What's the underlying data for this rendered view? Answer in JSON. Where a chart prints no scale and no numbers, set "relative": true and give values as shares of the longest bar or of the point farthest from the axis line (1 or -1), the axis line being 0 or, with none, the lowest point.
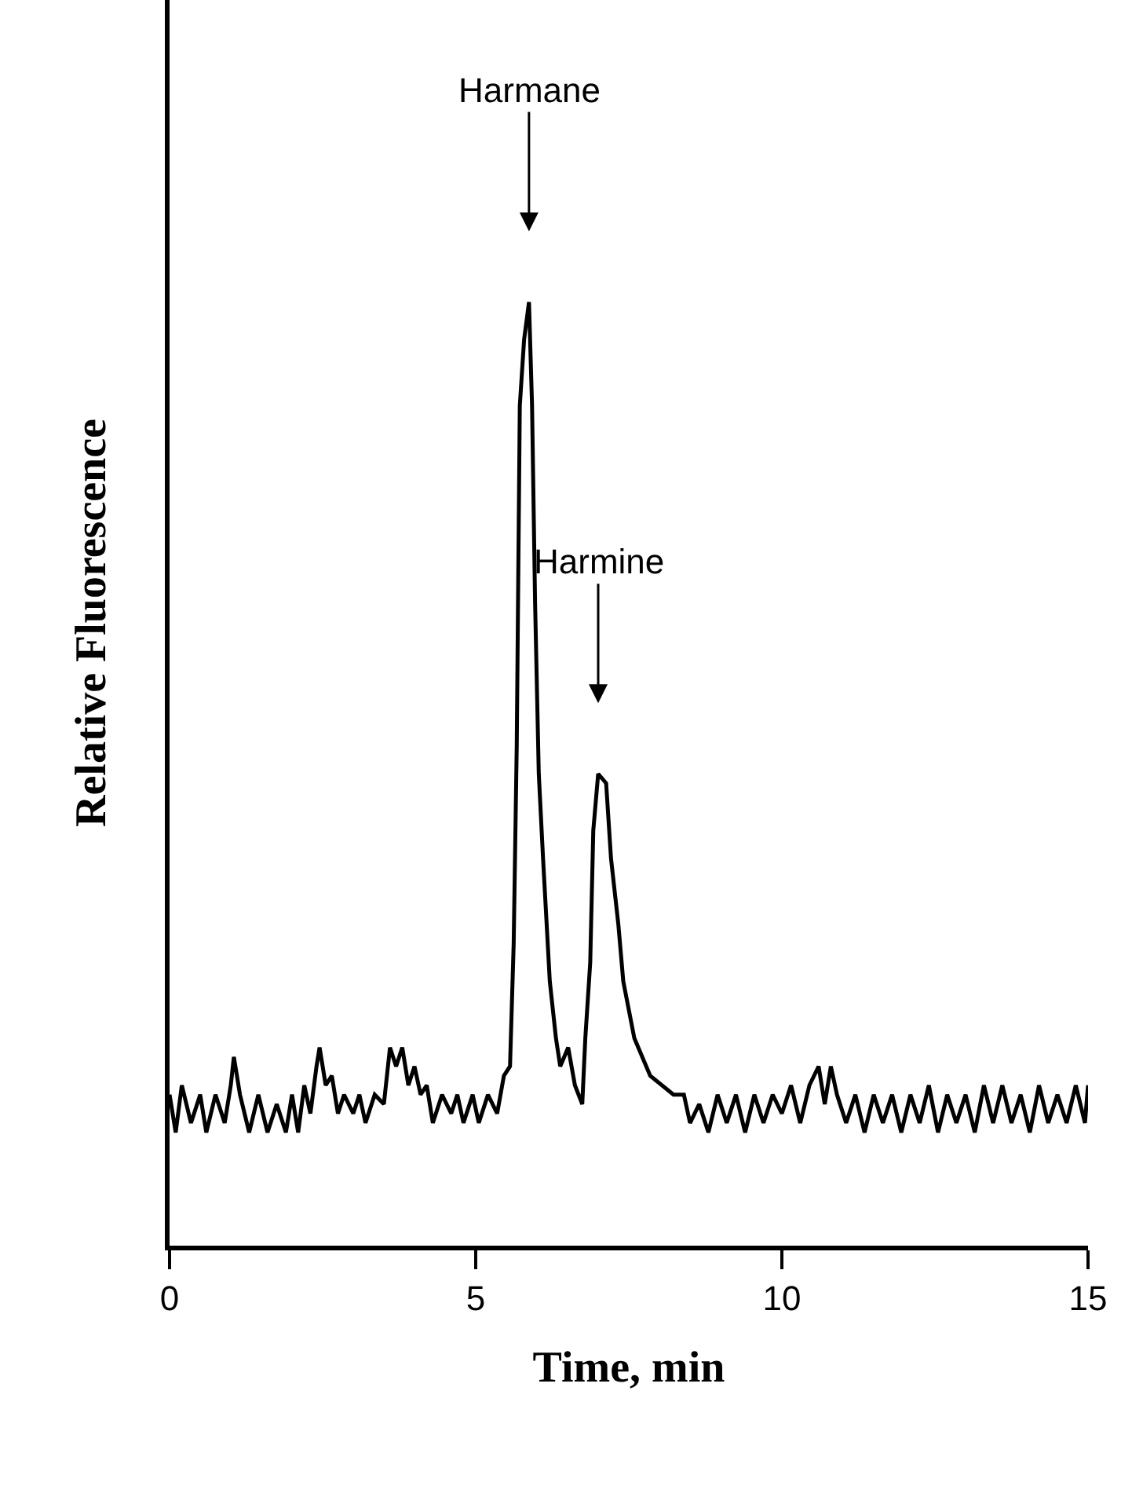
{
  "chart_data": {
    "type": "line",
    "xlabel": "Time, min",
    "ylabel": "Relative Fluorescence",
    "relative": true,
    "xlim": [
      0,
      15
    ],
    "xticks": [
      0,
      5,
      10,
      15
    ],
    "marker": "none",
    "line_style": "solid",
    "tick_labels": "x",
    "annotations": [
      {
        "text": "Harmane",
        "x": 5.87,
        "y": 1.0
      },
      {
        "text": "Harmine",
        "x": 7.0,
        "y": 0.5
      }
    ],
    "series": [
      {
        "color": "#000000",
        "x": [
          0.0,
          0.1,
          0.2,
          0.35,
          0.5,
          0.6,
          0.75,
          0.9,
          1.0,
          1.05,
          1.15,
          1.3,
          1.45,
          1.6,
          1.75,
          1.9,
          2.0,
          2.1,
          2.2,
          2.3,
          2.4,
          2.45,
          2.55,
          2.65,
          2.75,
          2.85,
          3.0,
          3.1,
          3.2,
          3.35,
          3.5,
          3.6,
          3.7,
          3.8,
          3.9,
          4.0,
          4.1,
          4.2,
          4.3,
          4.45,
          4.6,
          4.7,
          4.8,
          4.95,
          5.05,
          5.2,
          5.35,
          5.46,
          5.56,
          5.62,
          5.67,
          5.72,
          5.79,
          5.87,
          5.92,
          5.97,
          6.03,
          6.1,
          6.21,
          6.31,
          6.38,
          6.51,
          6.62,
          6.74,
          6.79,
          6.87,
          6.92,
          7.0,
          7.13,
          7.21,
          7.33,
          7.41,
          7.59,
          7.85,
          8.23,
          8.4,
          8.5,
          8.65,
          8.8,
          8.95,
          9.1,
          9.25,
          9.4,
          9.55,
          9.7,
          9.85,
          10.0,
          10.15,
          10.3,
          10.45,
          10.6,
          10.7,
          10.8,
          10.9,
          11.05,
          11.2,
          11.35,
          11.5,
          11.65,
          11.8,
          11.95,
          12.1,
          12.25,
          12.4,
          12.55,
          12.7,
          12.85,
          13.0,
          13.15,
          13.3,
          13.45,
          13.6,
          13.75,
          13.9,
          14.05,
          14.2,
          14.35,
          14.5,
          14.65,
          14.8,
          14.95,
          15.0
        ],
        "values": [
          0.16,
          0.12,
          0.17,
          0.13,
          0.16,
          0.12,
          0.16,
          0.13,
          0.17,
          0.2,
          0.16,
          0.12,
          0.16,
          0.12,
          0.15,
          0.12,
          0.16,
          0.12,
          0.17,
          0.14,
          0.19,
          0.21,
          0.17,
          0.18,
          0.14,
          0.16,
          0.14,
          0.16,
          0.13,
          0.16,
          0.15,
          0.21,
          0.19,
          0.21,
          0.17,
          0.19,
          0.16,
          0.17,
          0.13,
          0.16,
          0.14,
          0.16,
          0.13,
          0.16,
          0.13,
          0.16,
          0.14,
          0.18,
          0.19,
          0.32,
          0.53,
          0.89,
          0.96,
          1.0,
          0.89,
          0.68,
          0.5,
          0.41,
          0.28,
          0.22,
          0.19,
          0.21,
          0.17,
          0.15,
          0.22,
          0.3,
          0.44,
          0.5,
          0.49,
          0.41,
          0.34,
          0.28,
          0.22,
          0.18,
          0.16,
          0.16,
          0.13,
          0.15,
          0.12,
          0.16,
          0.13,
          0.16,
          0.12,
          0.16,
          0.13,
          0.16,
          0.14,
          0.17,
          0.13,
          0.17,
          0.19,
          0.15,
          0.19,
          0.16,
          0.13,
          0.16,
          0.12,
          0.16,
          0.13,
          0.16,
          0.12,
          0.16,
          0.13,
          0.17,
          0.12,
          0.16,
          0.13,
          0.16,
          0.12,
          0.17,
          0.13,
          0.17,
          0.13,
          0.16,
          0.12,
          0.17,
          0.13,
          0.16,
          0.13,
          0.17,
          0.13,
          0.17
        ]
      }
    ]
  }
}
